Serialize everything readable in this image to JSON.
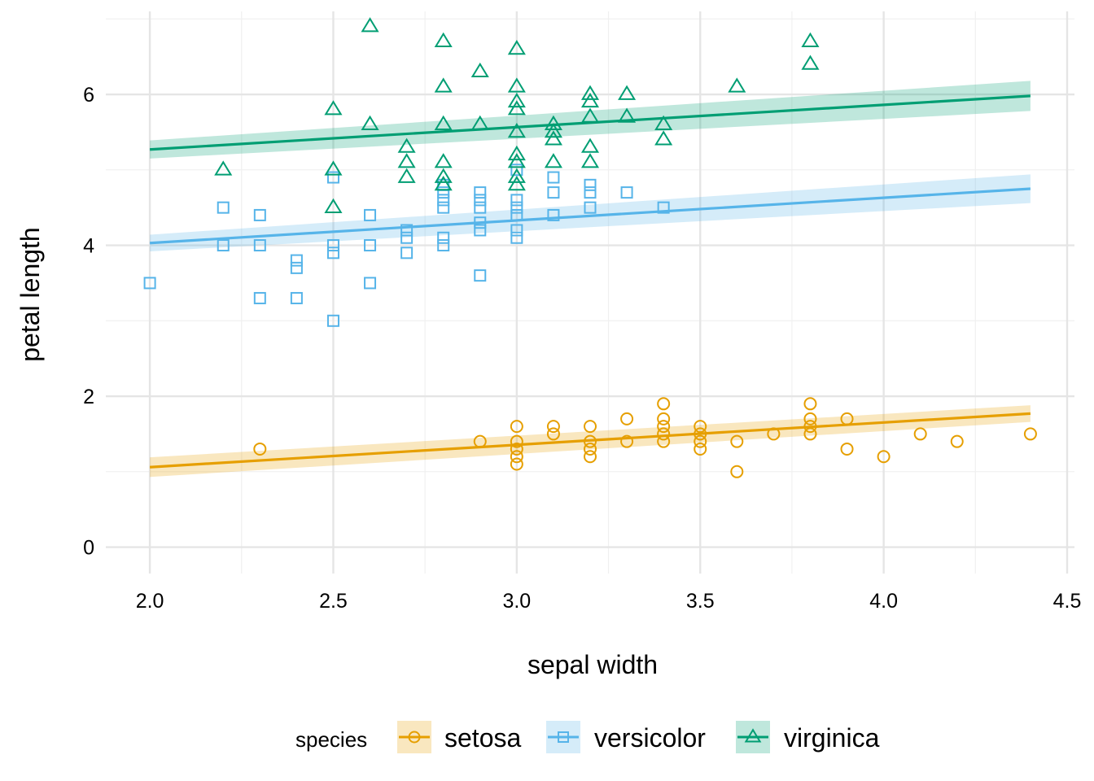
{
  "chart_data": {
    "type": "scatter",
    "title": "",
    "xlabel": "sepal width",
    "ylabel": "petal length",
    "xlim": [
      1.88,
      4.52
    ],
    "ylim": [
      -0.35,
      7.1
    ],
    "x_ticks": [
      2.0,
      2.5,
      3.0,
      3.5,
      4.0,
      4.5
    ],
    "x_tick_labels": [
      "2.0",
      "2.5",
      "3.0",
      "3.5",
      "4.0",
      "4.5"
    ],
    "y_ticks": [
      0,
      2,
      4,
      6
    ],
    "y_tick_labels": [
      "0",
      "2",
      "4",
      "6"
    ],
    "grid": true,
    "legend": {
      "title": "species",
      "position": "bottom"
    },
    "series": [
      {
        "name": "setosa",
        "marker": "circle",
        "color": "#E69F00",
        "fit": {
          "x": [
            2.0,
            4.4
          ],
          "y": [
            1.06,
            1.77
          ],
          "ci_half_width": [
            0.13,
            0.11
          ]
        },
        "points": [
          [
            2.3,
            1.3
          ],
          [
            2.9,
            1.4
          ],
          [
            3.0,
            1.6
          ],
          [
            3.0,
            1.4
          ],
          [
            3.0,
            1.3
          ],
          [
            3.0,
            1.2
          ],
          [
            3.0,
            1.1
          ],
          [
            3.1,
            1.6
          ],
          [
            3.1,
            1.5
          ],
          [
            3.2,
            1.6
          ],
          [
            3.2,
            1.4
          ],
          [
            3.2,
            1.3
          ],
          [
            3.2,
            1.2
          ],
          [
            3.3,
            1.7
          ],
          [
            3.3,
            1.4
          ],
          [
            3.4,
            1.9
          ],
          [
            3.4,
            1.7
          ],
          [
            3.4,
            1.6
          ],
          [
            3.4,
            1.5
          ],
          [
            3.4,
            1.4
          ],
          [
            3.5,
            1.6
          ],
          [
            3.5,
            1.5
          ],
          [
            3.5,
            1.4
          ],
          [
            3.5,
            1.3
          ],
          [
            3.6,
            1.4
          ],
          [
            3.6,
            1.0
          ],
          [
            3.7,
            1.5
          ],
          [
            3.8,
            1.9
          ],
          [
            3.8,
            1.7
          ],
          [
            3.8,
            1.6
          ],
          [
            3.8,
            1.5
          ],
          [
            3.9,
            1.7
          ],
          [
            3.9,
            1.3
          ],
          [
            4.0,
            1.2
          ],
          [
            4.1,
            1.5
          ],
          [
            4.2,
            1.4
          ],
          [
            4.4,
            1.5
          ]
        ]
      },
      {
        "name": "versicolor",
        "marker": "square",
        "color": "#56B4E9",
        "fit": {
          "x": [
            2.0,
            4.4
          ],
          "y": [
            4.03,
            4.75
          ],
          "ci_half_width": [
            0.11,
            0.19
          ]
        },
        "points": [
          [
            2.0,
            3.5
          ],
          [
            2.2,
            4.5
          ],
          [
            2.2,
            4.0
          ],
          [
            2.3,
            4.4
          ],
          [
            2.3,
            4.0
          ],
          [
            2.3,
            3.3
          ],
          [
            2.4,
            3.8
          ],
          [
            2.4,
            3.7
          ],
          [
            2.4,
            3.3
          ],
          [
            2.5,
            4.9
          ],
          [
            2.5,
            4.0
          ],
          [
            2.5,
            3.9
          ],
          [
            2.5,
            3.0
          ],
          [
            2.6,
            4.4
          ],
          [
            2.6,
            4.0
          ],
          [
            2.6,
            3.5
          ],
          [
            2.7,
            4.2
          ],
          [
            2.7,
            4.1
          ],
          [
            2.7,
            3.9
          ],
          [
            2.8,
            4.8
          ],
          [
            2.8,
            4.7
          ],
          [
            2.8,
            4.6
          ],
          [
            2.8,
            4.5
          ],
          [
            2.8,
            4.1
          ],
          [
            2.8,
            4.0
          ],
          [
            2.9,
            4.7
          ],
          [
            2.9,
            4.6
          ],
          [
            2.9,
            4.5
          ],
          [
            2.9,
            4.3
          ],
          [
            2.9,
            4.2
          ],
          [
            2.9,
            3.6
          ],
          [
            3.0,
            5.0
          ],
          [
            3.0,
            4.6
          ],
          [
            3.0,
            4.5
          ],
          [
            3.0,
            4.4
          ],
          [
            3.0,
            4.2
          ],
          [
            3.0,
            4.1
          ],
          [
            3.1,
            4.9
          ],
          [
            3.1,
            4.7
          ],
          [
            3.1,
            4.4
          ],
          [
            3.2,
            4.8
          ],
          [
            3.2,
            4.7
          ],
          [
            3.2,
            4.5
          ],
          [
            3.3,
            4.7
          ],
          [
            3.4,
            4.5
          ]
        ]
      },
      {
        "name": "virginica",
        "marker": "triangle",
        "color": "#009E73",
        "fit": {
          "x": [
            2.0,
            4.4
          ],
          "y": [
            5.27,
            5.98
          ],
          "ci_half_width": [
            0.12,
            0.2
          ]
        },
        "points": [
          [
            2.2,
            5.0
          ],
          [
            2.5,
            5.8
          ],
          [
            2.5,
            5.0
          ],
          [
            2.5,
            4.5
          ],
          [
            2.6,
            6.9
          ],
          [
            2.6,
            5.6
          ],
          [
            2.7,
            5.3
          ],
          [
            2.7,
            5.1
          ],
          [
            2.7,
            4.9
          ],
          [
            2.8,
            6.7
          ],
          [
            2.8,
            6.1
          ],
          [
            2.8,
            5.6
          ],
          [
            2.8,
            5.1
          ],
          [
            2.8,
            4.9
          ],
          [
            2.8,
            4.8
          ],
          [
            2.9,
            6.3
          ],
          [
            2.9,
            5.6
          ],
          [
            3.0,
            6.6
          ],
          [
            3.0,
            6.1
          ],
          [
            3.0,
            5.9
          ],
          [
            3.0,
            5.8
          ],
          [
            3.0,
            5.5
          ],
          [
            3.0,
            5.2
          ],
          [
            3.0,
            5.1
          ],
          [
            3.0,
            4.9
          ],
          [
            3.0,
            4.8
          ],
          [
            3.1,
            5.6
          ],
          [
            3.1,
            5.5
          ],
          [
            3.1,
            5.4
          ],
          [
            3.1,
            5.1
          ],
          [
            3.2,
            6.0
          ],
          [
            3.2,
            5.9
          ],
          [
            3.2,
            5.7
          ],
          [
            3.2,
            5.3
          ],
          [
            3.2,
            5.1
          ],
          [
            3.3,
            6.0
          ],
          [
            3.3,
            5.7
          ],
          [
            3.4,
            5.6
          ],
          [
            3.4,
            5.4
          ],
          [
            3.6,
            6.1
          ],
          [
            3.8,
            6.7
          ],
          [
            3.8,
            6.4
          ]
        ]
      }
    ]
  }
}
